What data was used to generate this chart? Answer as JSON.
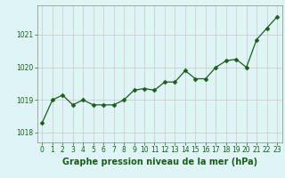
{
  "x": [
    0,
    1,
    2,
    3,
    4,
    5,
    6,
    7,
    8,
    9,
    10,
    11,
    12,
    13,
    14,
    15,
    16,
    17,
    18,
    19,
    20,
    21,
    22,
    23
  ],
  "y": [
    1018.3,
    1019.0,
    1019.15,
    1018.85,
    1019.0,
    1018.85,
    1018.85,
    1018.85,
    1019.0,
    1019.3,
    1019.35,
    1019.3,
    1019.55,
    1019.55,
    1019.9,
    1019.65,
    1019.65,
    1020.0,
    1020.2,
    1020.25,
    1020.0,
    1020.85,
    1021.2,
    1021.55
  ],
  "line_color": "#1e5c1e",
  "marker": "D",
  "marker_size": 2.5,
  "bg_color": "#dff5f5",
  "grid_color": "#c8c8c8",
  "title": "Graphe pression niveau de la mer (hPa)",
  "title_color": "#1a5c1a",
  "ylim": [
    1017.7,
    1021.9
  ],
  "yticks": [
    1018,
    1019,
    1020,
    1021
  ],
  "xticks": [
    0,
    1,
    2,
    3,
    4,
    5,
    6,
    7,
    8,
    9,
    10,
    11,
    12,
    13,
    14,
    15,
    16,
    17,
    18,
    19,
    20,
    21,
    22,
    23
  ],
  "tick_label_fontsize": 5.5,
  "title_fontsize": 7.0
}
